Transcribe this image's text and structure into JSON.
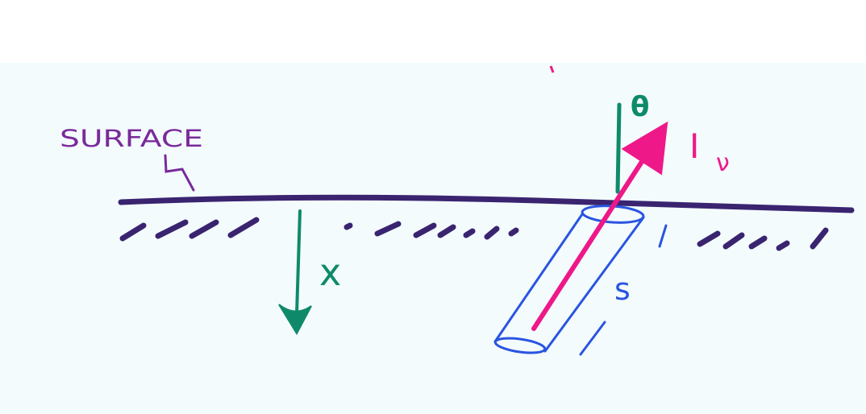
{
  "labels": {
    "surface": "SURFACE",
    "depth": "x",
    "angle": "θ",
    "intensity": "I",
    "intensity_sub": "ν",
    "path": "s"
  },
  "colors": {
    "surface_line": "#3a2470",
    "surface_label": "#7a2a9a",
    "depth_arrow": "#0e8a6a",
    "angle_mark": "#0e8a6a",
    "intensity_arrow": "#ee1888",
    "cylinder": "#2a55e0",
    "background": "#f3fbfd"
  }
}
